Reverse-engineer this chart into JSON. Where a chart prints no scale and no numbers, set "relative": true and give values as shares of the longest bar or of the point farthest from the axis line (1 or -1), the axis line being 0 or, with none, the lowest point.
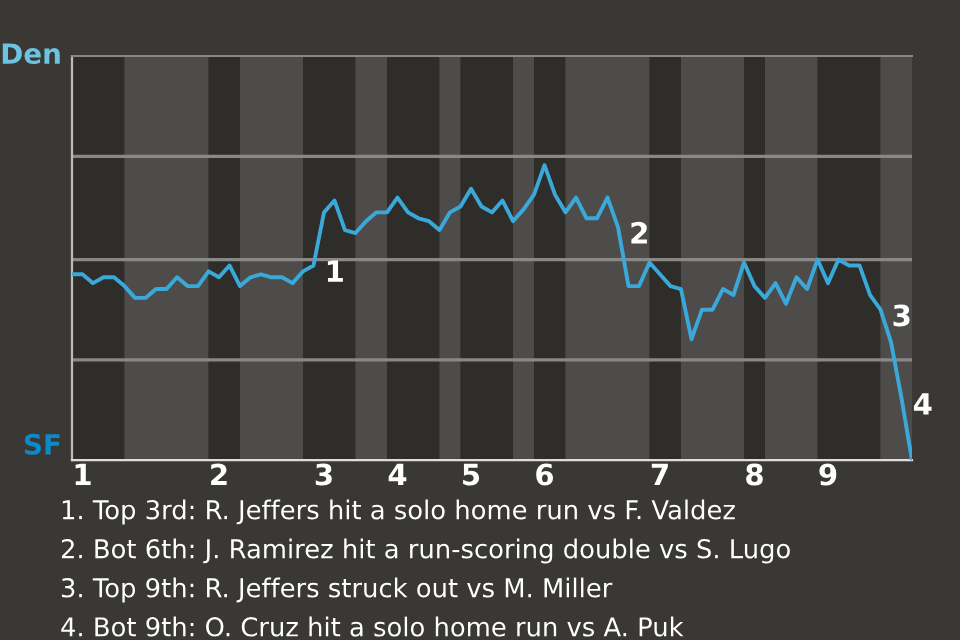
{
  "chart_data": {
    "type": "line",
    "relative": true,
    "categories": [
      null,
      "1",
      null,
      null,
      null,
      null,
      null,
      null,
      null,
      null,
      null,
      null,
      null,
      null,
      "2",
      null,
      null,
      null,
      null,
      null,
      null,
      null,
      null,
      null,
      "3",
      null,
      null,
      null,
      null,
      null,
      null,
      "4",
      null,
      null,
      null,
      null,
      null,
      null,
      "5",
      null,
      null,
      null,
      null,
      null,
      null,
      "6",
      null,
      null,
      null,
      null,
      null,
      null,
      null,
      null,
      null,
      null,
      "7",
      null,
      null,
      null,
      null,
      null,
      null,
      null,
      null,
      "8",
      null,
      null,
      null,
      null,
      null,
      null,
      "9",
      null,
      null,
      null,
      null,
      null,
      null,
      null,
      null
    ],
    "series": [
      {
        "color": "#3aa8d8",
        "values": [
          0.63,
          0.63,
          0.6,
          0.62,
          0.62,
          0.59,
          0.55,
          0.55,
          0.58,
          0.58,
          0.62,
          0.59,
          0.59,
          0.64,
          0.62,
          0.66,
          0.59,
          0.62,
          0.63,
          0.62,
          0.62,
          0.6,
          0.64,
          0.66,
          0.84,
          0.88,
          0.78,
          0.77,
          0.81,
          0.84,
          0.84,
          0.89,
          0.84,
          0.82,
          0.81,
          0.78,
          0.84,
          0.86,
          0.92,
          0.86,
          0.84,
          0.88,
          0.81,
          0.85,
          0.9,
          1,
          0.9,
          0.84,
          0.89,
          0.82,
          0.82,
          0.89,
          0.79,
          0.59,
          0.59,
          0.67,
          0.63,
          0.59,
          0.58,
          0.41,
          0.51,
          0.51,
          0.58,
          0.56,
          0.67,
          0.59,
          0.55,
          0.6,
          0.53,
          0.62,
          0.58,
          0.68,
          0.6,
          0.68,
          0.66,
          0.66,
          0.56,
          0.51,
          0.4,
          0.21,
          0
        ]
      }
    ],
    "ref_lines": [
      {
        "axis": "y",
        "value": 0.34,
        "color": "#8a8886"
      },
      {
        "axis": "y",
        "value": 0.68,
        "color": "#8a8886"
      },
      {
        "axis": "y",
        "value": 1.03,
        "color": "#8a8886"
      }
    ],
    "annotations": [
      "Den",
      "SF",
      "1",
      "2",
      "3",
      "4",
      "1. Top 3rd: R. Jeffers hit a solo home run vs F. Valdez",
      "2. Bot 6th: J. Ramirez hit a run-scoring double vs S. Lugo",
      "3. Top 9th: R. Jeffers struck out vs M. Miller",
      "4. Bot 9th: O. Cruz hit a solo home run vs A. Puk"
    ]
  }
}
